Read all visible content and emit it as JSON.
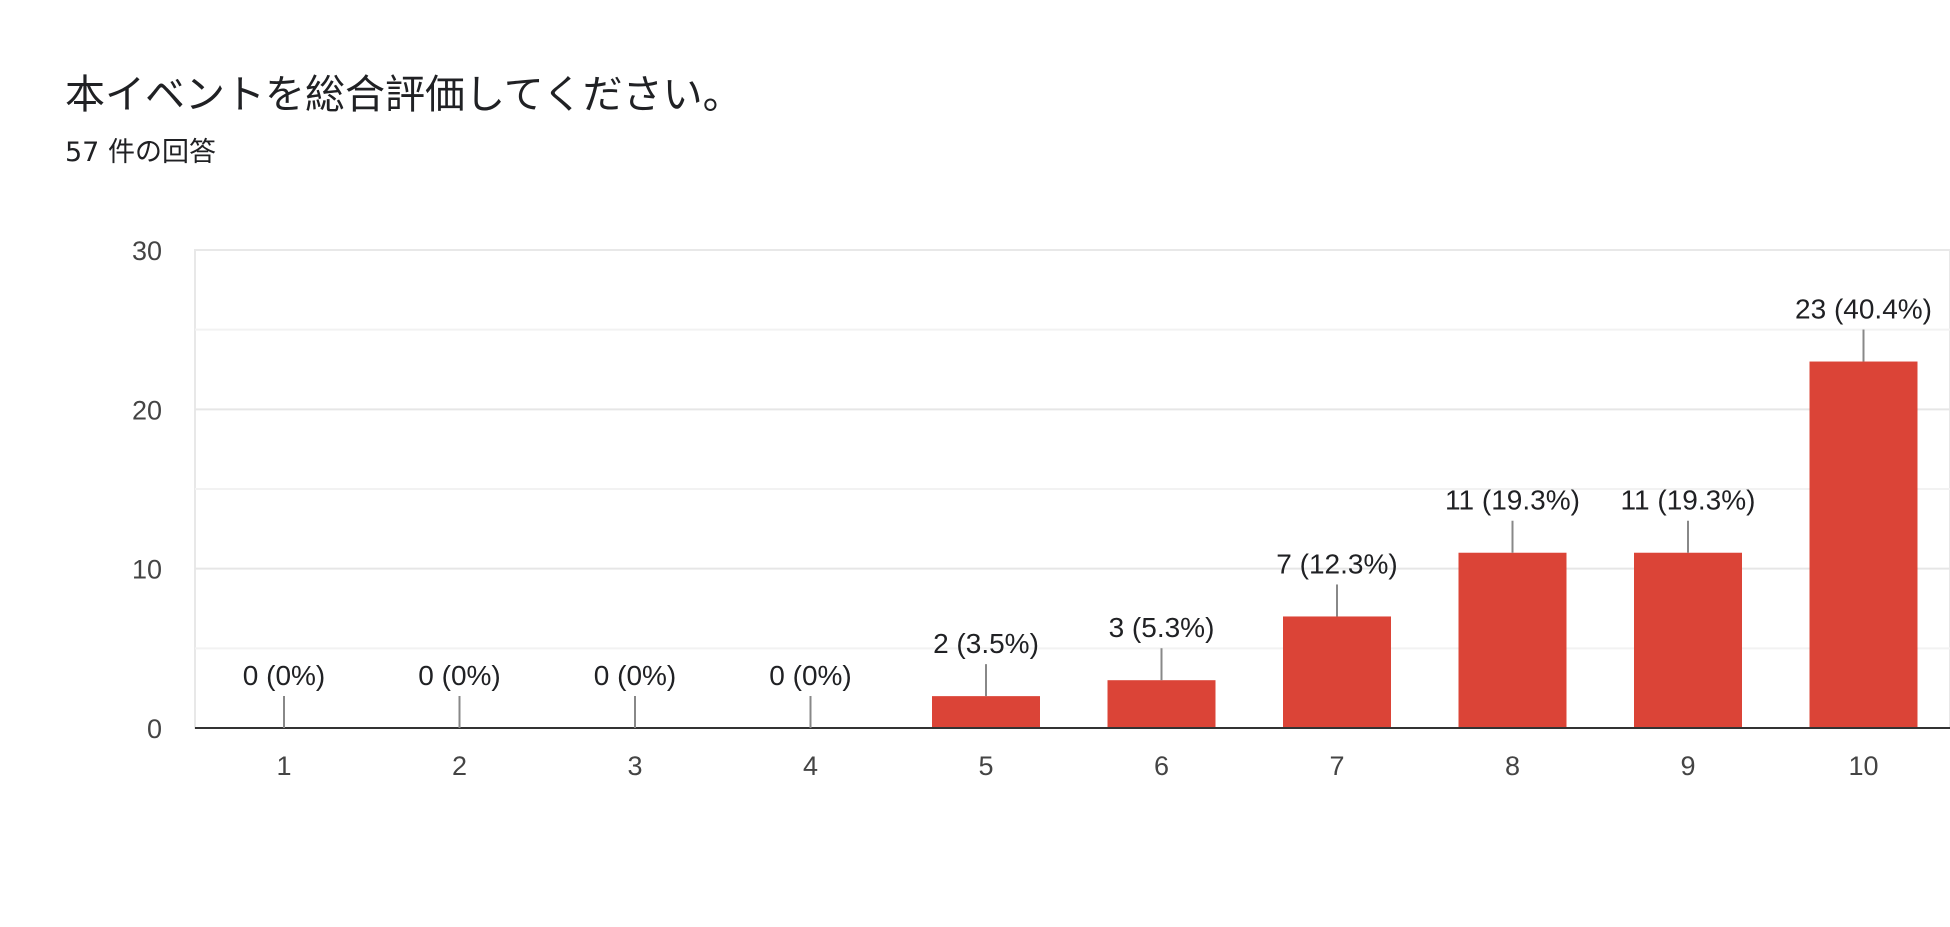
{
  "header": {
    "title": "本イベントを総合評価してください。",
    "responses": "57 件の回答"
  },
  "chart_data": {
    "type": "bar",
    "categories": [
      "1",
      "2",
      "3",
      "4",
      "5",
      "6",
      "7",
      "8",
      "9",
      "10"
    ],
    "values": [
      0,
      0,
      0,
      0,
      2,
      3,
      7,
      11,
      11,
      23
    ],
    "data_labels": [
      "0 (0%)",
      "0 (0%)",
      "0 (0%)",
      "0 (0%)",
      "2 (3.5%)",
      "3 (5.3%)",
      "7 (12.3%)",
      "11 (19.3%)",
      "11 (19.3%)",
      "23 (40.4%)"
    ],
    "y_ticks": [
      "0",
      "10",
      "20",
      "30"
    ],
    "ylim": [
      0,
      30
    ],
    "grid": true,
    "legend": "none",
    "bar_color": "#db4437"
  }
}
